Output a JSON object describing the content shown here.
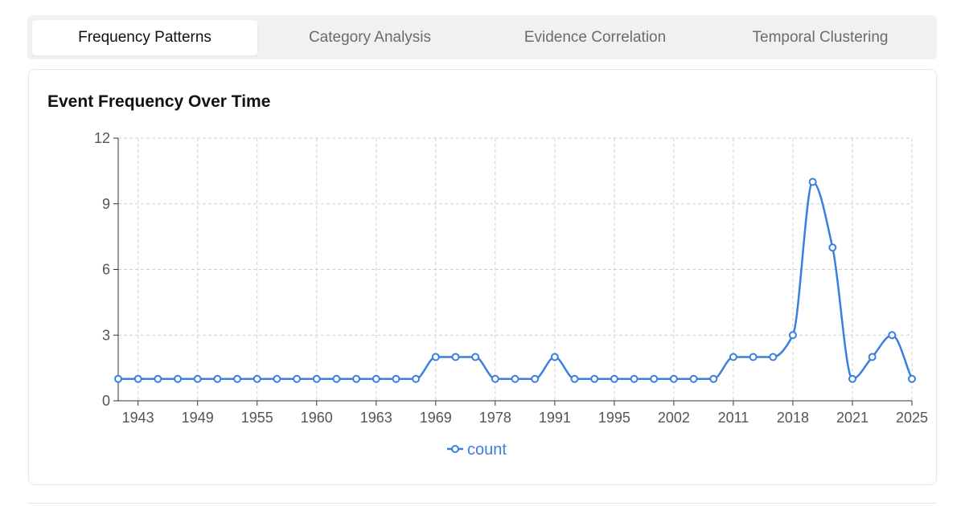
{
  "tabs": [
    {
      "label": "Frequency Patterns",
      "active": true
    },
    {
      "label": "Category Analysis",
      "active": false
    },
    {
      "label": "Evidence Correlation",
      "active": false
    },
    {
      "label": "Temporal Clustering",
      "active": false
    }
  ],
  "card": {
    "title": "Event Frequency Over Time"
  },
  "colors": {
    "line": "#3a7fe0",
    "grid": "#cfcfcf",
    "axis": "#333333",
    "tick_text": "#555555"
  },
  "chart_data": {
    "type": "line",
    "title": "",
    "xlabel": "",
    "ylabel": "",
    "ylim": [
      0,
      12
    ],
    "yticks": [
      0,
      3,
      6,
      9,
      12
    ],
    "x_tick_labels": [
      "1943",
      "1949",
      "1955",
      "1960",
      "1963",
      "1969",
      "1978",
      "1991",
      "1995",
      "2002",
      "2011",
      "2018",
      "2021",
      "2025"
    ],
    "x_tick_label_every": 3,
    "grid": true,
    "legend": "bottom",
    "series": [
      {
        "name": "count",
        "values": [
          1,
          1,
          1,
          1,
          1,
          1,
          1,
          1,
          1,
          1,
          1,
          1,
          1,
          1,
          1,
          1,
          2,
          2,
          2,
          1,
          1,
          1,
          2,
          1,
          1,
          1,
          1,
          1,
          1,
          1,
          1,
          2,
          2,
          2,
          3,
          10,
          7,
          1,
          2,
          3,
          1
        ]
      }
    ]
  }
}
